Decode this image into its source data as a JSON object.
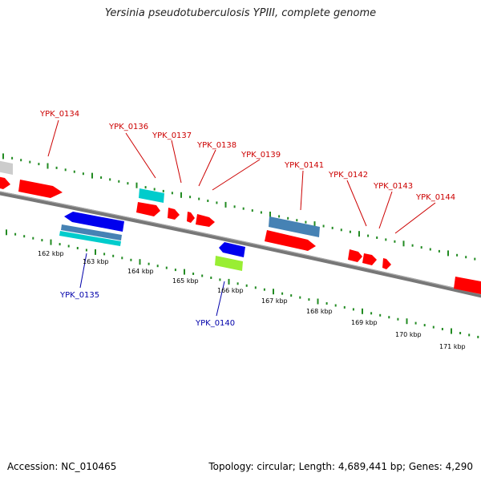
{
  "title": "Yersinia pseudotuberculosis YPIII, complete genome",
  "footer": {
    "accession": "Accession: NC_010465",
    "stats": "Topology: circular; Length: 4,689,441 bp; Genes: 4,290"
  },
  "colors": {
    "backbone": "#808080",
    "forward_gene": "#ff0000",
    "reverse_gene": "#0000ee",
    "cyan_feature": "#00cccc",
    "steel_feature": "#4682b4",
    "green_feature": "#99ee33",
    "grey_feature": "#cccccc",
    "tick": "#228b22",
    "forward_label": "#cc0000",
    "reverse_label": "#0000aa"
  },
  "scale_labels": [
    "162 kbp",
    "163 kbp",
    "164 kbp",
    "165 kbp",
    "166 kbp",
    "167 kbp",
    "168 kbp",
    "169 kbp",
    "170 kbp",
    "171 kbp"
  ],
  "gene_labels": {
    "forward": [
      "YPK_0134",
      "YPK_0136",
      "YPK_0137",
      "YPK_0138",
      "YPK_0139",
      "YPK_0141",
      "YPK_0142",
      "YPK_0143",
      "YPK_0144"
    ],
    "reverse": [
      "YPK_0135",
      "YPK_0140"
    ]
  }
}
